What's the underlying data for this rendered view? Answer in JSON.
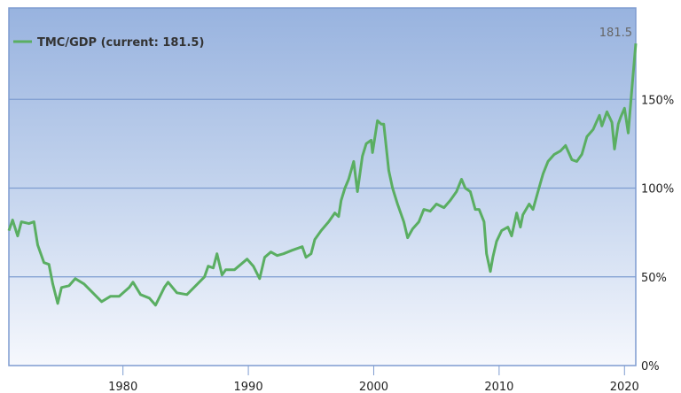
{
  "chart_data": {
    "type": "line",
    "title": "",
    "xlabel": "",
    "ylabel": "",
    "xlim": [
      1970.9,
      2020.9
    ],
    "ylim": [
      0,
      201.5
    ],
    "grid": true,
    "legend_position": "top-left",
    "x_ticks": [
      {
        "value": 1980,
        "label": "1980"
      },
      {
        "value": 1990,
        "label": "1990"
      },
      {
        "value": 2000,
        "label": "2000"
      },
      {
        "value": 2010,
        "label": "2010"
      },
      {
        "value": 2020,
        "label": "2020"
      }
    ],
    "y_ticks": [
      {
        "value": 0,
        "label": "0%"
      },
      {
        "value": 50,
        "label": "50%"
      },
      {
        "value": 100,
        "label": "100%"
      },
      {
        "value": 150,
        "label": "150%"
      }
    ],
    "annotation": {
      "x": 2020.9,
      "y": 181.5,
      "label": "181.5"
    },
    "line_color": "#5aae62",
    "series": [
      {
        "name": "TMC/GDP (current: 181.5)",
        "x": [
          1970.9,
          1971.2,
          1971.6,
          1971.9,
          1972.5,
          1972.9,
          1973.2,
          1973.7,
          1974.1,
          1974.4,
          1974.8,
          1975.1,
          1975.7,
          1976.2,
          1976.9,
          1977.6,
          1978.3,
          1979.0,
          1979.7,
          1980.5,
          1980.8,
          1981.4,
          1982.1,
          1982.6,
          1983.3,
          1983.6,
          1984.3,
          1985.1,
          1985.8,
          1986.5,
          1986.8,
          1987.2,
          1987.5,
          1987.9,
          1988.2,
          1988.9,
          1989.4,
          1989.9,
          1990.4,
          1990.9,
          1991.3,
          1991.8,
          1992.3,
          1992.8,
          1993.5,
          1994.3,
          1994.6,
          1995.0,
          1995.3,
          1995.8,
          1996.4,
          1996.9,
          1997.2,
          1997.4,
          1997.7,
          1998.0,
          1998.4,
          1998.7,
          1999.1,
          1999.4,
          1999.8,
          1999.9,
          2000.3,
          2000.6,
          2000.8,
          2001.0,
          2001.2,
          2001.5,
          2001.9,
          2002.4,
          2002.7,
          2003.1,
          2003.6,
          2004.0,
          2004.5,
          2005.0,
          2005.6,
          2006.1,
          2006.6,
          2007.0,
          2007.3,
          2007.7,
          2008.1,
          2008.4,
          2008.8,
          2009.0,
          2009.3,
          2009.5,
          2009.8,
          2010.2,
          2010.7,
          2011.0,
          2011.4,
          2011.7,
          2011.9,
          2012.4,
          2012.7,
          2013.1,
          2013.5,
          2013.9,
          2014.4,
          2014.9,
          2015.3,
          2015.8,
          2016.2,
          2016.6,
          2017.0,
          2017.5,
          2018.0,
          2018.2,
          2018.6,
          2019.0,
          2019.2,
          2019.5,
          2019.7,
          2020.0,
          2020.3,
          2020.6,
          2020.9
        ],
        "y": [
          76,
          82,
          73,
          81,
          80,
          81,
          68,
          58,
          57,
          46,
          35,
          44,
          45,
          49,
          46,
          41,
          36,
          39,
          39,
          44,
          47,
          40,
          38,
          34,
          44,
          47,
          41,
          40,
          45,
          50,
          56,
          55,
          63,
          51,
          54,
          54,
          57,
          60,
          56,
          49,
          61,
          64,
          62,
          63,
          65,
          67,
          61,
          63,
          71,
          76,
          81,
          86,
          84,
          93,
          100,
          105,
          115,
          98,
          118,
          125,
          127,
          120,
          138,
          136,
          136,
          123,
          110,
          100,
          91,
          81,
          72,
          77,
          81,
          88,
          87,
          91,
          89,
          93,
          98,
          105,
          100,
          98,
          88,
          88,
          81,
          63,
          53,
          61,
          70,
          76,
          78,
          73,
          86,
          78,
          85,
          91,
          88,
          98,
          108,
          115,
          119,
          121,
          124,
          116,
          115,
          119,
          129,
          133,
          141,
          135,
          143,
          137,
          122,
          136,
          140,
          145,
          131,
          157,
          181.5
        ]
      }
    ]
  }
}
